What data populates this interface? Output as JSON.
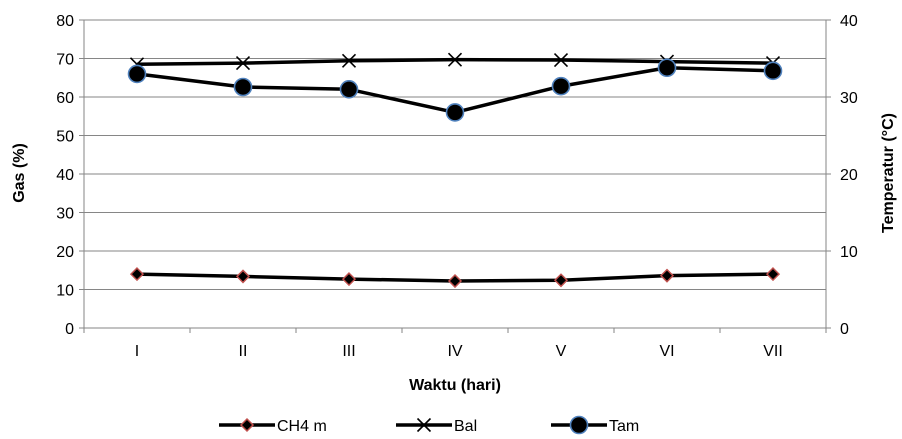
{
  "chart_data": {
    "type": "line",
    "categories": [
      "I",
      "II",
      "III",
      "IV",
      "V",
      "VI",
      "VII"
    ],
    "xlabel": "Waktu (hari)",
    "ylabel": "Gas (%)",
    "y2label": "Temperatur (°C)",
    "ylim": [
      0,
      80
    ],
    "y2lim": [
      0,
      40
    ],
    "yticks": [
      0,
      10,
      20,
      30,
      40,
      50,
      60,
      70,
      80
    ],
    "y2ticks": [
      0,
      10,
      20,
      30,
      40
    ],
    "grid": true,
    "legend_position": "bottom",
    "series": [
      {
        "name": "CH4 m",
        "axis": "left",
        "marker": "diamond",
        "values": [
          14.0,
          13.4,
          12.7,
          12.2,
          12.4,
          13.6,
          14.0
        ],
        "line_color": "#000000",
        "marker_color": "#c0504d"
      },
      {
        "name": "Bal",
        "axis": "left",
        "marker": "x",
        "values": [
          68.5,
          68.8,
          69.4,
          69.7,
          69.6,
          69.2,
          68.8
        ],
        "line_color": "#000000",
        "marker_color": "#000000"
      },
      {
        "name": "Tam",
        "axis": "right",
        "marker": "circle",
        "values": [
          33.0,
          31.3,
          31.0,
          28.0,
          31.4,
          33.8,
          33.4
        ],
        "line_color": "#000000",
        "marker_color": "#000000",
        "marker_edge": "#4f81bd"
      }
    ]
  }
}
